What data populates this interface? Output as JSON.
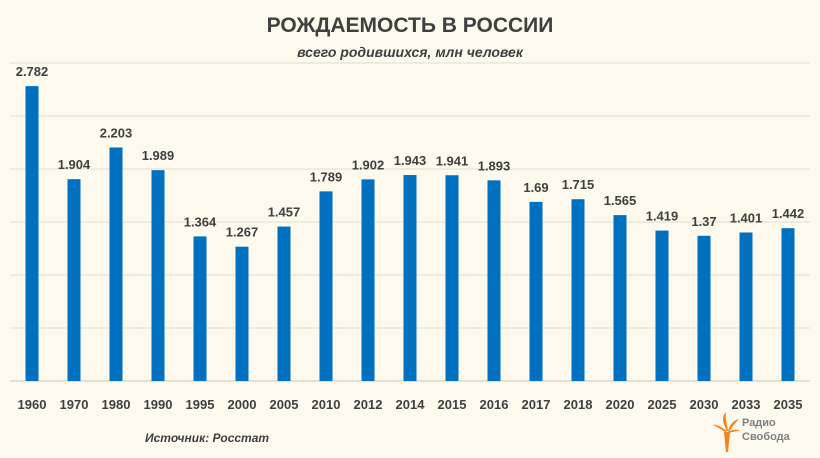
{
  "chart_data": {
    "type": "bar",
    "title": "РОЖДАЕМОСТЬ В РОССИИ",
    "subtitle": "всего родившихся, млн человек",
    "xlabel": "",
    "ylabel": "",
    "ylim": [
      0,
      3
    ],
    "grid": true,
    "grid_step": 0.5,
    "categories": [
      "1960",
      "1970",
      "1980",
      "1990",
      "1995",
      "2000",
      "2005",
      "2010",
      "2012",
      "2014",
      "2015",
      "2016",
      "2017",
      "2018",
      "2020",
      "2025",
      "2030",
      "2033",
      "2035"
    ],
    "values": [
      2.782,
      1.904,
      2.203,
      1.989,
      1.364,
      1.267,
      1.457,
      1.789,
      1.902,
      1.943,
      1.941,
      1.893,
      1.69,
      1.715,
      1.565,
      1.419,
      1.37,
      1.401,
      1.442
    ],
    "value_labels": [
      "2.782",
      "1.904",
      "2.203",
      "1.989",
      "1.364",
      "1.267",
      "1.457",
      "1.789",
      "1.902",
      "1.943",
      "1.941",
      "1.893",
      "1.69",
      "1.715",
      "1.565",
      "1.419",
      "1.37",
      "1.401",
      "1.442"
    ],
    "bar_color": "#0070c0"
  },
  "source": "Источник: Росстат",
  "logo": {
    "line1": "Радио",
    "line2": "Свобода",
    "color": "#f58220"
  }
}
